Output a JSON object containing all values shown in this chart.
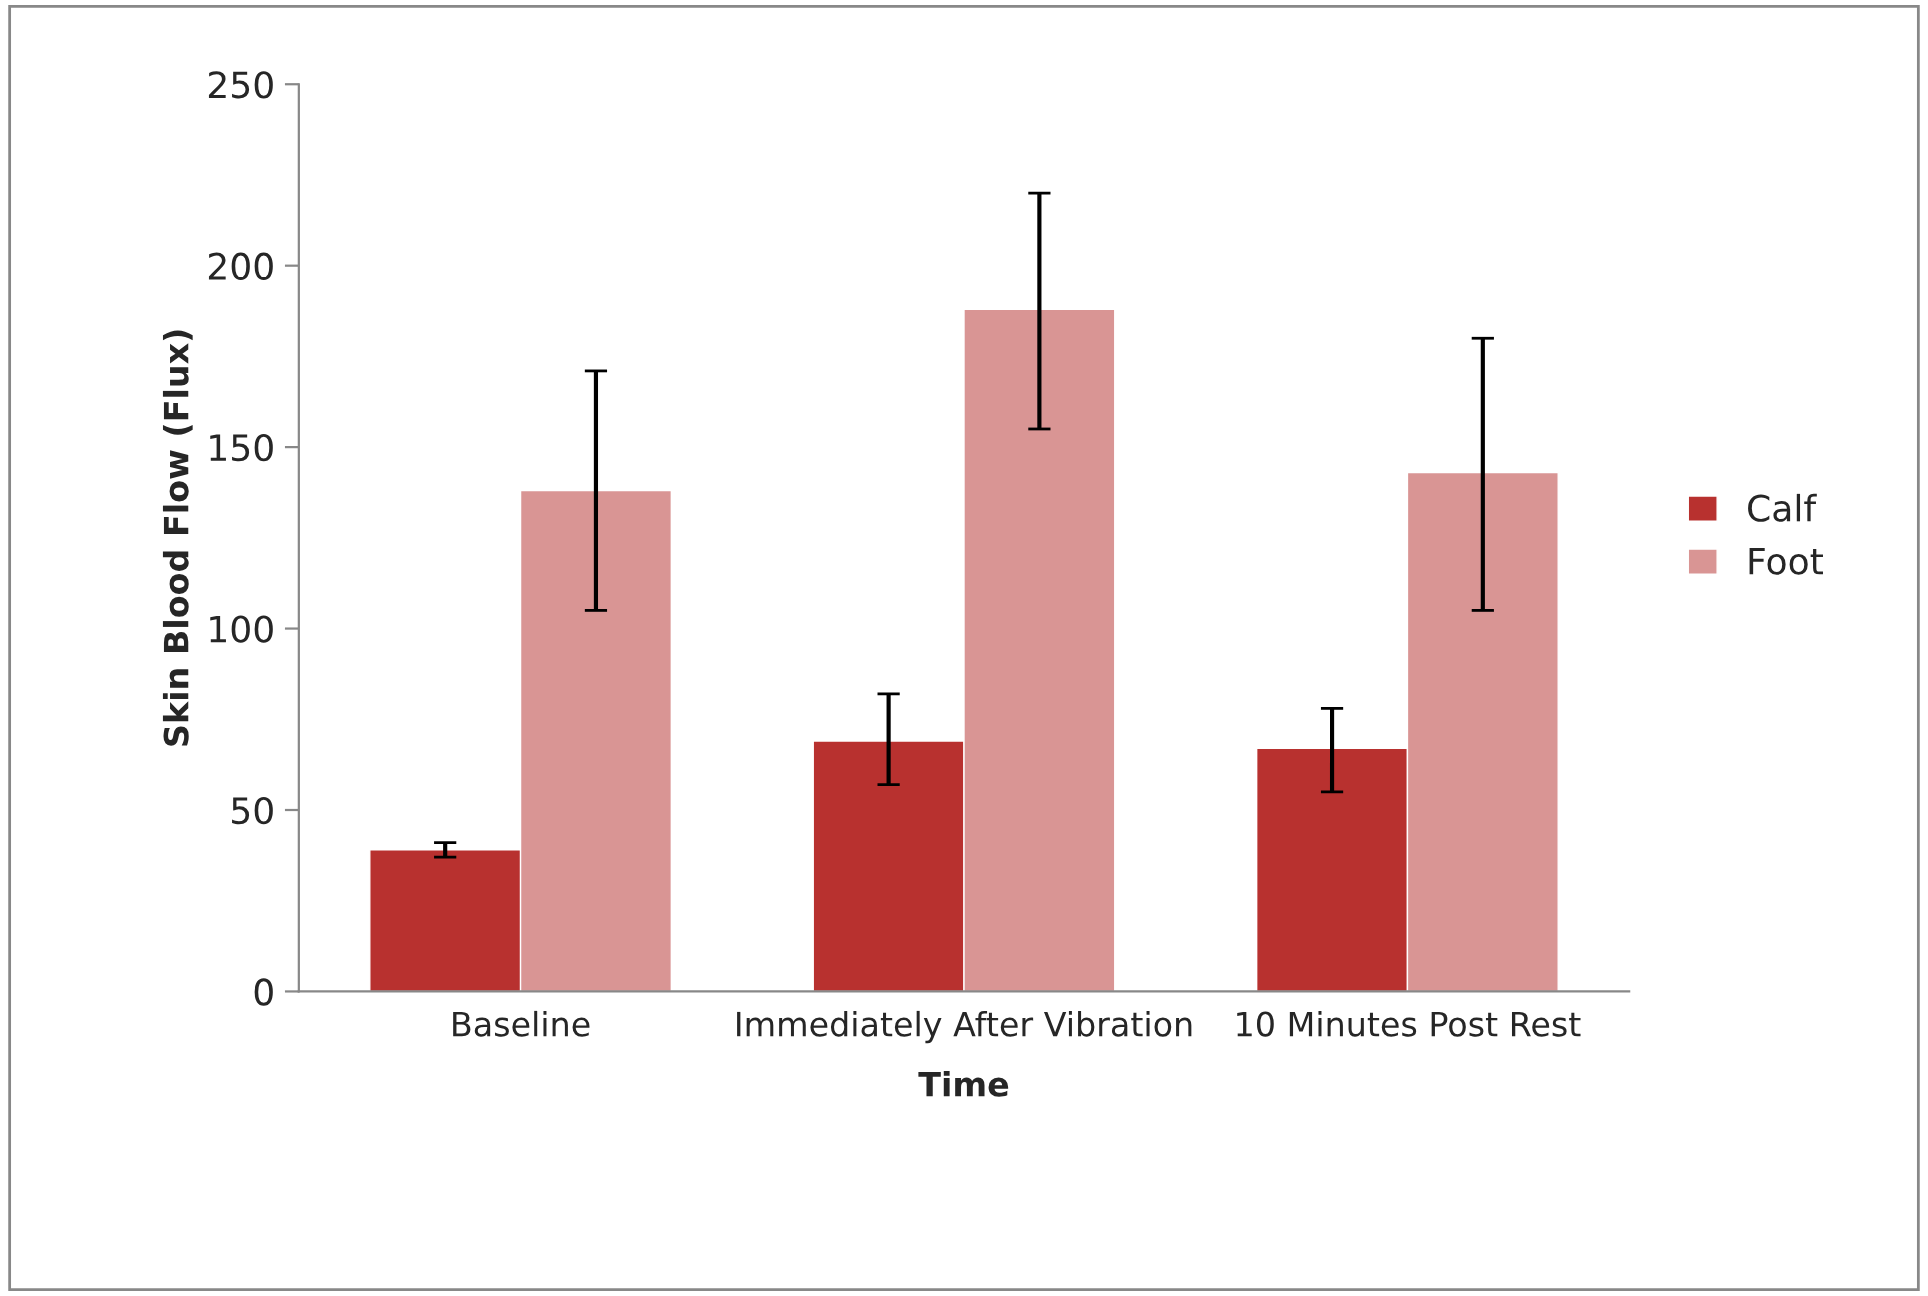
{
  "chart_data": {
    "type": "bar",
    "xlabel": "Time",
    "ylabel": "Skin Blood Flow (Flux)",
    "categories": [
      "Baseline",
      "Immediately After Vibration",
      "10 Minutes Post Rest"
    ],
    "series": [
      {
        "name": "Calf",
        "color": "#b8312f",
        "values": [
          39,
          69,
          67
        ],
        "errors": [
          [
            37,
            41
          ],
          [
            57,
            82
          ],
          [
            55,
            78
          ]
        ]
      },
      {
        "name": "Foot",
        "color": "#d99594",
        "values": [
          138,
          188,
          143
        ],
        "errors": [
          [
            105,
            171
          ],
          [
            155,
            220
          ],
          [
            105,
            180
          ]
        ]
      }
    ],
    "ylim": [
      0,
      250
    ],
    "yticks": [
      0,
      50,
      100,
      150,
      200,
      250
    ],
    "grid": false,
    "legend": "right"
  }
}
